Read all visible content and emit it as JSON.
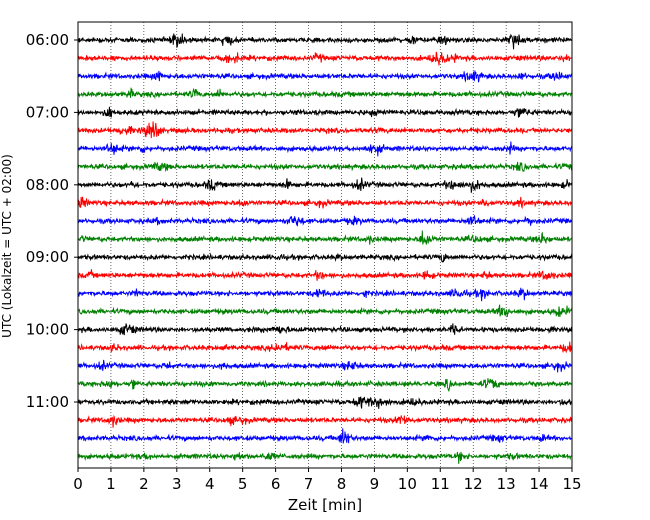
{
  "chart_data": {
    "type": "line",
    "title": "",
    "xlabel": "Zeit  [min]",
    "ylabel": "UTC (Lokalzeit = UTC + 02:00)",
    "xlim": [
      0,
      15
    ],
    "x_ticks": [
      "0",
      "1",
      "2",
      "3",
      "4",
      "5",
      "6",
      "7",
      "8",
      "9",
      "10",
      "11",
      "12",
      "13",
      "14",
      "15"
    ],
    "y_ticks": [
      "06:00",
      "07:00",
      "08:00",
      "09:00",
      "10:00",
      "11:00"
    ],
    "grid": "vertical dotted lines at each minute",
    "trace_interval_minutes": 15,
    "trace_start": "06:00",
    "trace_count": 24,
    "trace_colors": [
      "#000000",
      "#ff0000",
      "#0000ff",
      "#008000"
    ]
  }
}
